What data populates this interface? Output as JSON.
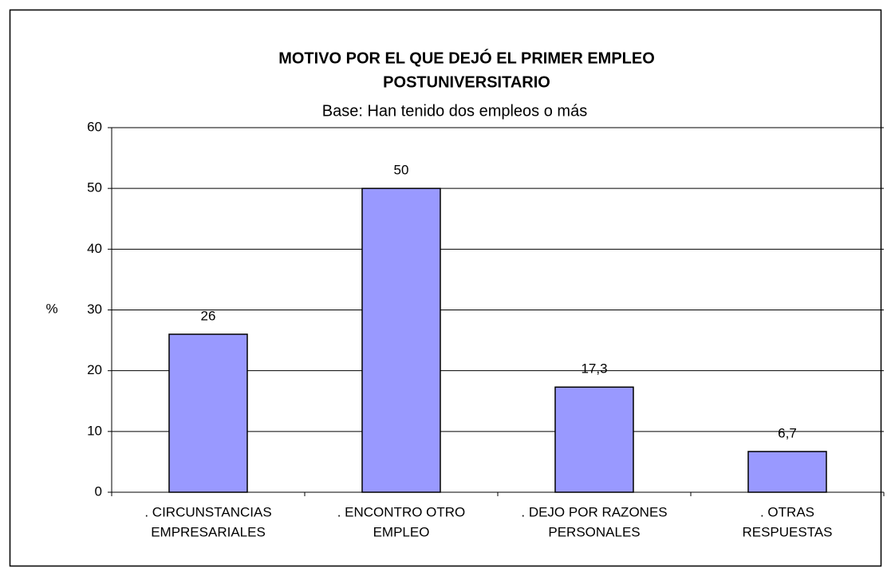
{
  "chart_data": {
    "type": "bar",
    "title": [
      "MOTIVO POR EL QUE DEJÓ EL PRIMER EMPLEO",
      "POSTUNIVERSITARIO"
    ],
    "subtitle": "Base: Han tenido dos empleos o más",
    "ylabel": "%",
    "categories": [
      [
        ". CIRCUNSTANCIAS",
        "EMPRESARIALES"
      ],
      [
        ". ENCONTRO OTRO",
        "EMPLEO"
      ],
      [
        ". DEJO POR RAZONES",
        "PERSONALES"
      ],
      [
        ". OTRAS",
        "RESPUESTAS"
      ]
    ],
    "values": [
      26,
      50,
      17.3,
      6.7
    ],
    "value_labels": [
      "26",
      "50",
      "17,3",
      "6,7"
    ],
    "color": "#9999ff",
    "ylim": [
      0,
      60
    ],
    "yticks": [
      0,
      10,
      20,
      30,
      40,
      50,
      60
    ],
    "grid": true
  }
}
